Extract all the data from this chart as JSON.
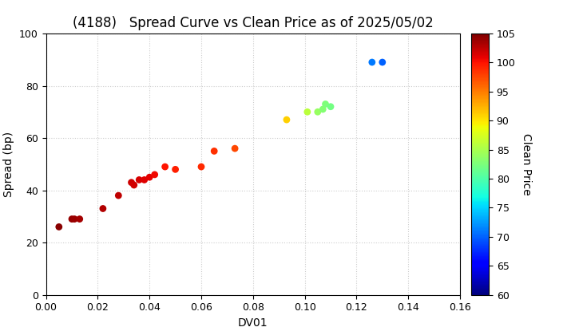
{
  "title": "(4188)   Spread Curve vs Clean Price as of 2025/05/02",
  "xlabel": "DV01",
  "ylabel": "Spread (bp)",
  "xlim": [
    0.0,
    0.16
  ],
  "ylim": [
    0,
    100
  ],
  "xticks": [
    0.0,
    0.02,
    0.04,
    0.06,
    0.08,
    0.1,
    0.12,
    0.14,
    0.16
  ],
  "yticks": [
    0,
    20,
    40,
    60,
    80,
    100
  ],
  "colorbar_label": "Clean Price",
  "colorbar_vmin": 60,
  "colorbar_vmax": 105,
  "colorbar_ticks": [
    60,
    65,
    70,
    75,
    80,
    85,
    90,
    95,
    100,
    105
  ],
  "points": [
    {
      "dv01": 0.005,
      "spread": 26,
      "price": 104.5
    },
    {
      "dv01": 0.01,
      "spread": 29,
      "price": 104.0
    },
    {
      "dv01": 0.011,
      "spread": 29,
      "price": 103.8
    },
    {
      "dv01": 0.013,
      "spread": 29,
      "price": 103.5
    },
    {
      "dv01": 0.022,
      "spread": 33,
      "price": 103.0
    },
    {
      "dv01": 0.028,
      "spread": 38,
      "price": 102.5
    },
    {
      "dv01": 0.033,
      "spread": 43,
      "price": 102.0
    },
    {
      "dv01": 0.034,
      "spread": 42,
      "price": 101.8
    },
    {
      "dv01": 0.036,
      "spread": 44,
      "price": 101.5
    },
    {
      "dv01": 0.038,
      "spread": 44,
      "price": 101.2
    },
    {
      "dv01": 0.04,
      "spread": 45,
      "price": 101.0
    },
    {
      "dv01": 0.042,
      "spread": 46,
      "price": 100.5
    },
    {
      "dv01": 0.046,
      "spread": 49,
      "price": 100.0
    },
    {
      "dv01": 0.05,
      "spread": 48,
      "price": 99.5
    },
    {
      "dv01": 0.06,
      "spread": 49,
      "price": 99.0
    },
    {
      "dv01": 0.065,
      "spread": 55,
      "price": 98.5
    },
    {
      "dv01": 0.073,
      "spread": 56,
      "price": 97.5
    },
    {
      "dv01": 0.093,
      "spread": 67,
      "price": 91.0
    },
    {
      "dv01": 0.101,
      "spread": 70,
      "price": 86.0
    },
    {
      "dv01": 0.105,
      "spread": 70,
      "price": 84.0
    },
    {
      "dv01": 0.107,
      "spread": 71,
      "price": 83.0
    },
    {
      "dv01": 0.108,
      "spread": 73,
      "price": 82.5
    },
    {
      "dv01": 0.11,
      "spread": 72,
      "price": 82.0
    },
    {
      "dv01": 0.126,
      "spread": 89,
      "price": 71.0
    },
    {
      "dv01": 0.13,
      "spread": 89,
      "price": 70.0
    }
  ],
  "background_color": "#ffffff",
  "grid_color": "#cccccc",
  "title_fontsize": 12,
  "axis_label_fontsize": 10,
  "tick_fontsize": 9,
  "marker_size": 40
}
